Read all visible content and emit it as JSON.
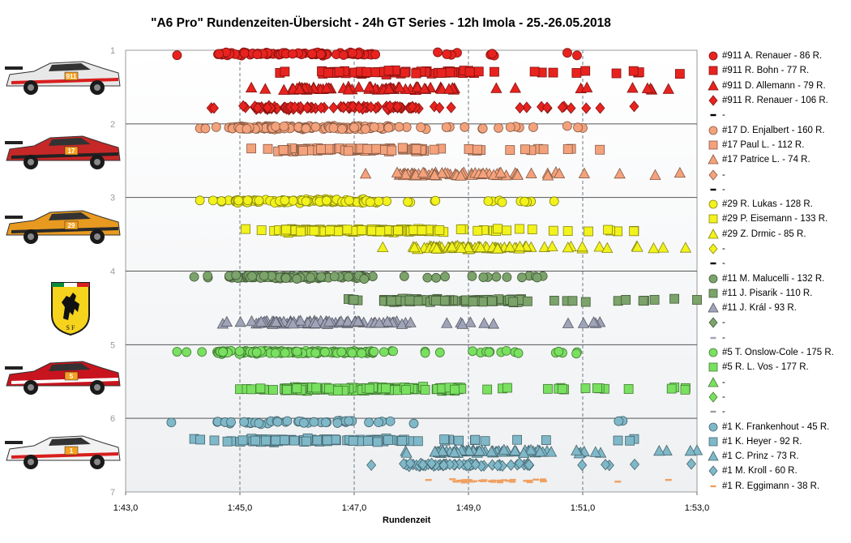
{
  "chart_data": {
    "type": "scatter",
    "title": "\"A6 Pro\" Rundenzeiten-Übersicht  - 24h GT Series  - 12h Imola  - 25.-26.05.2018",
    "xlabel": "Rundenzeit",
    "ylabel": "",
    "x_ticks": [
      "1:43,0",
      "1:45,0",
      "1:47,0",
      "1:49,0",
      "1:51,0",
      "1:53,0"
    ],
    "x_tick_seconds": [
      103,
      105,
      107,
      109,
      111,
      113
    ],
    "xlim_seconds": [
      103,
      113
    ],
    "y_ticks": [
      "1",
      "2",
      "3",
      "4",
      "5",
      "6",
      "7"
    ],
    "ylim": [
      1,
      7
    ],
    "grid": "dashed vertical at 1:45,0 / 1:47,0 / 1:49,0 / 1:51,0; solid horizontal between cars",
    "legend_position": "right",
    "series": [
      {
        "name": "#911 A. Renauer - 86 R.",
        "shape": "circle",
        "color": "#e8231f",
        "y": 1.05,
        "laps": 86,
        "x_range": [
          "1:43,9",
          "1:50,9"
        ],
        "x_range_seconds": [
          103.9,
          110.9
        ]
      },
      {
        "name": "#911 R. Bohn - 77 R.",
        "shape": "square",
        "color": "#e8231f",
        "y": 1.3,
        "laps": 77,
        "x_range": [
          "1:45,7",
          "1:52,7"
        ],
        "x_range_seconds": [
          105.7,
          112.7
        ]
      },
      {
        "name": "#911 D. Allemann - 79 R.",
        "shape": "triangle",
        "color": "#e8231f",
        "y": 1.52,
        "laps": 79,
        "x_range": [
          "1:45,2",
          "1:52,5"
        ],
        "x_range_seconds": [
          105.2,
          112.5
        ]
      },
      {
        "name": "#911 R. Renauer - 106 R.",
        "shape": "diamond",
        "color": "#e8231f",
        "y": 1.78,
        "laps": 106,
        "x_range": [
          "1:44,5",
          "1:51,9"
        ],
        "x_range_seconds": [
          104.5,
          111.9
        ]
      },
      {
        "name": "-",
        "shape": "dash",
        "color": "#000000",
        "y": null,
        "laps": 0
      },
      {
        "name": "#17 D. Enjalbert - 160 R.",
        "shape": "circle",
        "color": "#f4a27c",
        "y": 2.05,
        "laps": 160,
        "x_range": [
          "1:44,3",
          "1:51,0"
        ],
        "x_range_seconds": [
          104.3,
          111.0
        ]
      },
      {
        "name": "#17 Paul L. - 112 R.",
        "shape": "square",
        "color": "#f4a27c",
        "y": 2.35,
        "laps": 112,
        "x_range": [
          "1:45,2",
          "1:51,3"
        ],
        "x_range_seconds": [
          105.2,
          111.3
        ]
      },
      {
        "name": "#17 Patrice L. - 74 R.",
        "shape": "triangle",
        "color": "#f4a27c",
        "y": 2.68,
        "laps": 74,
        "x_range": [
          "1:47,2",
          "1:52,7"
        ],
        "x_range_seconds": [
          107.2,
          112.7
        ]
      },
      {
        "name": "-",
        "shape": "diamond",
        "color": "#f4a27c",
        "y": null,
        "laps": 0
      },
      {
        "name": "-",
        "shape": "dash",
        "color": "#000000",
        "y": null,
        "laps": 0
      },
      {
        "name": "#29 R. Lukas - 128 R.",
        "shape": "circle",
        "color": "#f2f21d",
        "y": 3.05,
        "laps": 128,
        "x_range": [
          "1:44,3",
          "1:50,5"
        ],
        "x_range_seconds": [
          104.3,
          110.5
        ]
      },
      {
        "name": "#29 P. Eisemann - 133 R.",
        "shape": "square",
        "color": "#f2f21d",
        "y": 3.45,
        "laps": 133,
        "x_range": [
          "1:45,1",
          "1:51,9"
        ],
        "x_range_seconds": [
          105.1,
          111.9
        ]
      },
      {
        "name": "#29 Z. Drmic - 85 R.",
        "shape": "triangle",
        "color": "#f2f21d",
        "y": 3.68,
        "laps": 85,
        "x_range": [
          "1:47,5",
          "1:52,8"
        ],
        "x_range_seconds": [
          107.5,
          112.8
        ]
      },
      {
        "name": "-",
        "shape": "diamond",
        "color": "#f2f21d",
        "y": null,
        "laps": 0
      },
      {
        "name": "-",
        "shape": "dash",
        "color": "#000000",
        "y": null,
        "laps": 0
      },
      {
        "name": "#11 M. Malucelli - 132 R.",
        "shape": "circle",
        "color": "#7ba36a",
        "y": 4.08,
        "laps": 132,
        "x_range": [
          "1:44,2",
          "1:50,3"
        ],
        "x_range_seconds": [
          104.2,
          110.3
        ]
      },
      {
        "name": "#11 J. Pisarik - 110 R.",
        "shape": "square",
        "color": "#7ba36a",
        "y": 4.4,
        "laps": 110,
        "x_range": [
          "1:46,9",
          "1:53,0"
        ],
        "x_range_seconds": [
          106.9,
          113.0
        ]
      },
      {
        "name": "#11 J. Král - 93 R.",
        "shape": "triangle",
        "color": "#a0a4b8",
        "y": 4.7,
        "laps": 93,
        "x_range": [
          "1:44,7",
          "1:51,3"
        ],
        "x_range_seconds": [
          104.7,
          111.3
        ]
      },
      {
        "name": "-",
        "shape": "diamond",
        "color": "#7ba36a",
        "y": null,
        "laps": 0
      },
      {
        "name": "-",
        "shape": "dash",
        "color": "#a0a4b8",
        "y": null,
        "laps": 0
      },
      {
        "name": "#5 T. Onslow-Cole - 175 R.",
        "shape": "circle",
        "color": "#79e060",
        "y": 5.1,
        "laps": 175,
        "x_range": [
          "1:43,9",
          "1:50,9"
        ],
        "x_range_seconds": [
          103.9,
          110.9
        ]
      },
      {
        "name": "#5 R. L. Vos - 177 R.",
        "shape": "square",
        "color": "#79e060",
        "y": 5.6,
        "laps": 177,
        "x_range": [
          "1:45,0",
          "1:52,8"
        ],
        "x_range_seconds": [
          105.0,
          112.8
        ]
      },
      {
        "name": "-",
        "shape": "triangle",
        "color": "#79e060",
        "y": null,
        "laps": 0
      },
      {
        "name": "-",
        "shape": "diamond",
        "color": "#79e060",
        "y": null,
        "laps": 0
      },
      {
        "name": "-",
        "shape": "dash",
        "color": "#a0a0a0",
        "y": null,
        "laps": 0
      },
      {
        "name": "#1 K. Frankenhout - 45 R.",
        "shape": "circle",
        "color": "#7fb8c8",
        "y": 6.05,
        "laps": 45,
        "x_range": [
          "1:43,8",
          "1:51,7"
        ],
        "x_range_seconds": [
          103.8,
          111.7
        ]
      },
      {
        "name": "#1 K. Heyer - 92 R.",
        "shape": "square",
        "color": "#7fb8c8",
        "y": 6.3,
        "laps": 92,
        "x_range": [
          "1:44,2",
          "1:51,9"
        ],
        "x_range_seconds": [
          104.2,
          111.9
        ]
      },
      {
        "name": "#1 C. Prinz - 73 R.",
        "shape": "triangle",
        "color": "#7fb8c8",
        "y": 6.45,
        "laps": 73,
        "x_range": [
          "1:47,9",
          "1:53,0"
        ],
        "x_range_seconds": [
          107.9,
          113.0
        ]
      },
      {
        "name": "#1 M. Kroll - 60 R.",
        "shape": "diamond",
        "color": "#7fb8c8",
        "y": 6.63,
        "laps": 60,
        "x_range": [
          "1:47,3",
          "1:52,9"
        ],
        "x_range_seconds": [
          107.3,
          112.9
        ]
      },
      {
        "name": "#1 R. Eggimann - 38 R.",
        "shape": "dash",
        "color": "#f0a060",
        "y": 6.85,
        "laps": 38,
        "x_range": [
          "1:48,3",
          "1:52,5"
        ],
        "x_range_seconds": [
          108.3,
          112.5
        ]
      }
    ]
  },
  "cars": [
    {
      "label": "911",
      "body": "#e8e8e8",
      "accent": "#d81e1e"
    },
    {
      "label": "17",
      "body": "#c62828",
      "accent": "#222222"
    },
    {
      "label": "29",
      "body": "#e89a20",
      "accent": "#2a2a2a"
    },
    {
      "label": "5",
      "body": "#c8141e",
      "accent": "#ffffff"
    },
    {
      "label": "1",
      "body": "#f2f2f2",
      "accent": "#d81e1e"
    }
  ]
}
